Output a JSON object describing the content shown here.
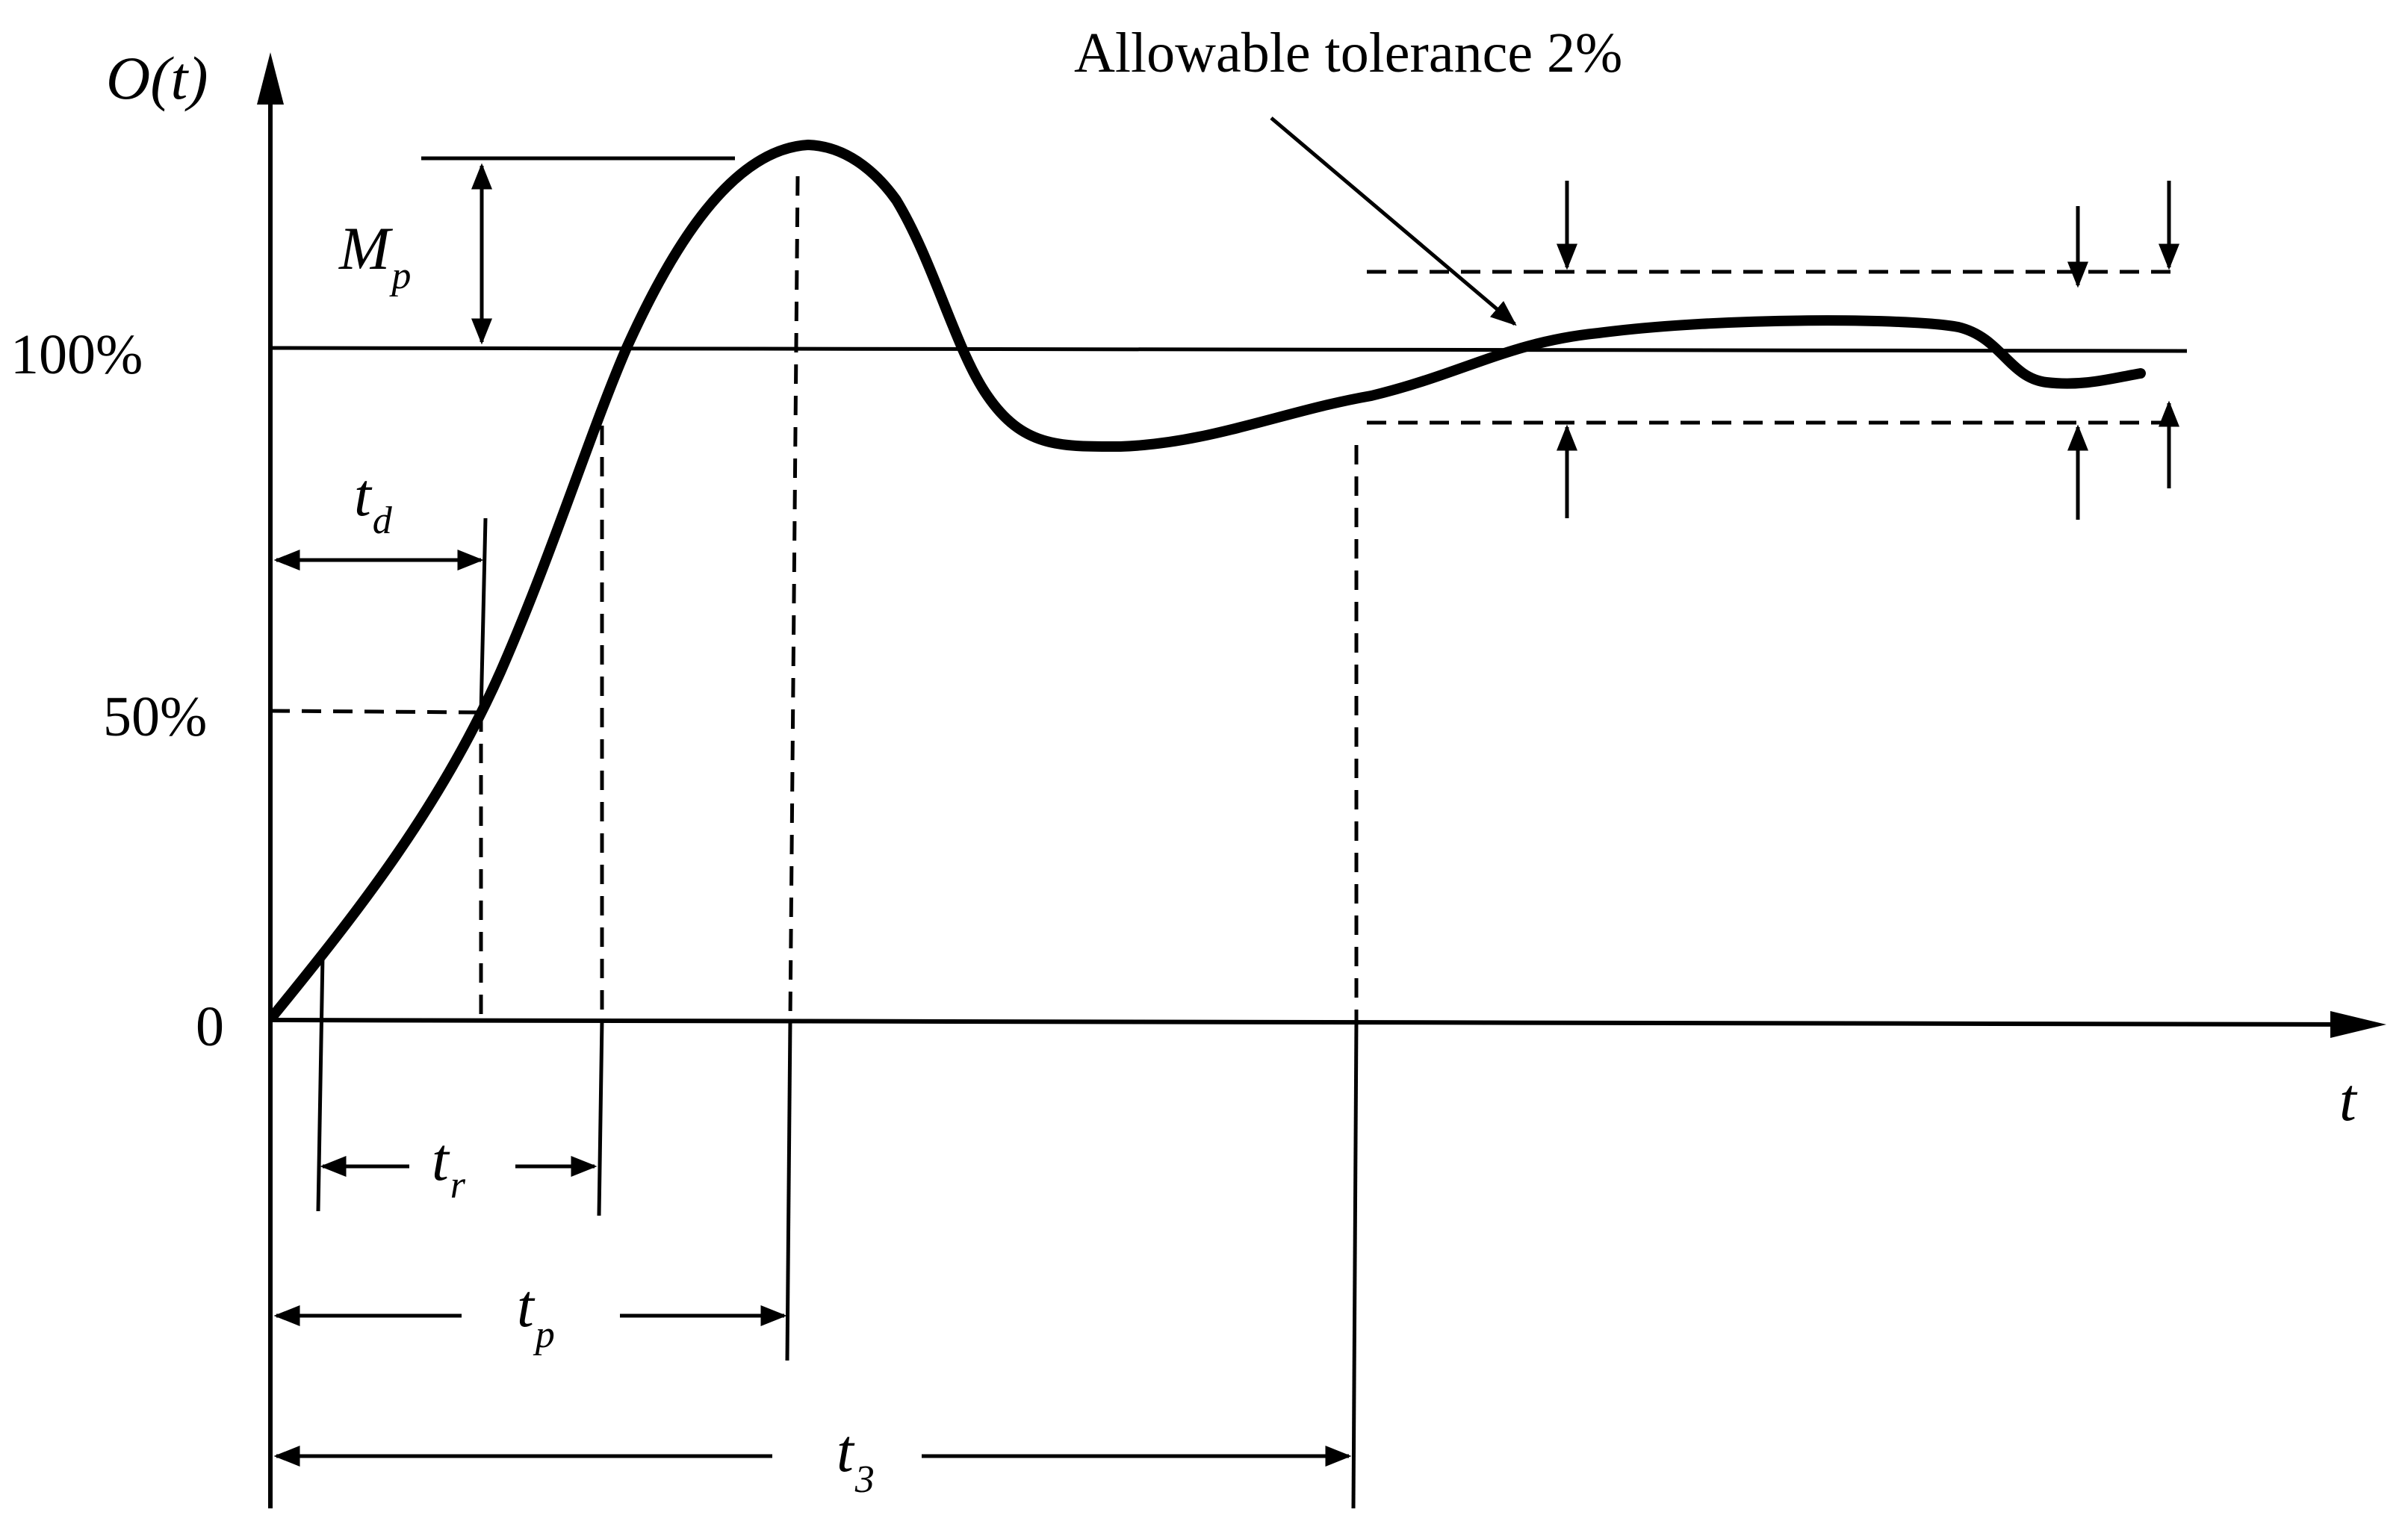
{
  "diagram": {
    "y_axis_label": "O(t)",
    "x_axis_label": "t",
    "tick_labels": {
      "zero": "0",
      "fifty": "50%",
      "hundred": "100%"
    },
    "annotation": "Allowable tolerance 2%",
    "intervals": {
      "overshoot": {
        "symbol": "M",
        "subscript": "p"
      },
      "delay_time": {
        "symbol": "t",
        "subscript": "d"
      },
      "rise_time": {
        "symbol": "t",
        "subscript": "r"
      },
      "peak_time": {
        "symbol": "t",
        "subscript": "p"
      },
      "settling_time": {
        "symbol": "t",
        "subscript": "3"
      }
    },
    "curve_name": "step-response-curve"
  }
}
